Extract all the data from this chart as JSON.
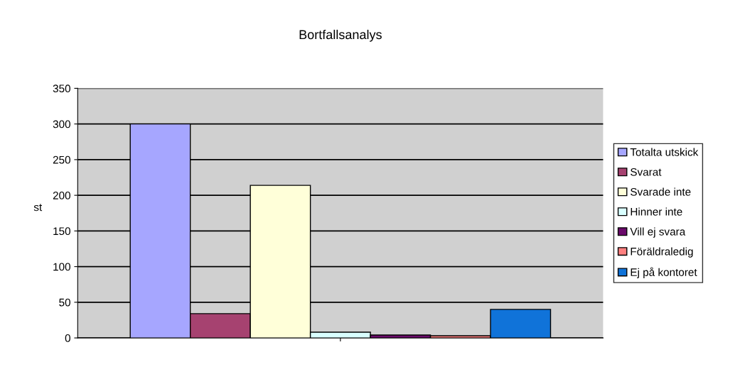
{
  "chart_data": {
    "type": "bar",
    "title": "Bortfallsanalys",
    "ylabel": "st",
    "categories": [
      null
    ],
    "series": [
      {
        "name": "Totalta utskick",
        "color": "#a6a6ff",
        "values": [
          300
        ]
      },
      {
        "name": "Svarat",
        "color": "#a64270",
        "values": [
          34
        ]
      },
      {
        "name": "Svarade inte",
        "color": "#ffffd9",
        "values": [
          214
        ]
      },
      {
        "name": "Hinner inte",
        "color": "#d9ffff",
        "values": [
          8
        ]
      },
      {
        "name": "Vill ej svara",
        "color": "#6b0a6b",
        "values": [
          4
        ]
      },
      {
        "name": "Föräldraledig",
        "color": "#ff8080",
        "values": [
          3
        ]
      },
      {
        "name": "Ej på kontoret",
        "color": "#1073d9",
        "values": [
          40
        ]
      }
    ],
    "ylim": [
      0,
      350
    ],
    "yticks": [
      0,
      50,
      100,
      150,
      200,
      250,
      300,
      350
    ],
    "grid": "y",
    "legend": "right"
  }
}
